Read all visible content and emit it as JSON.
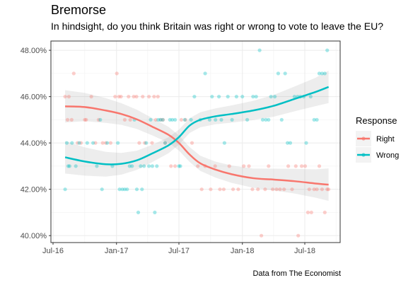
{
  "chart_data": {
    "type": "scatter",
    "title": "Bremorse",
    "subtitle": "In hindsight, do you think Britain was right or wrong to vote to leave the EU?",
    "caption": "Data from The Economist",
    "xlabel": "",
    "ylabel": "",
    "x_ticks": [
      "Jul-16",
      "Jan-17",
      "Jul-17",
      "Jan-18",
      "Jul-18"
    ],
    "y_ticks": [
      "40.00%",
      "42.00%",
      "44.00%",
      "46.00%",
      "48.00%"
    ],
    "ylim": [
      39.7,
      48.4
    ],
    "grid": true,
    "legend": {
      "title": "Response",
      "placement": "right"
    },
    "colors": {
      "Right": "#F8766D",
      "Wrong": "#00BFC4"
    },
    "series": [
      {
        "name": "Right",
        "points": [
          [
            "2016-08-05",
            46
          ],
          [
            "2016-08-12",
            45
          ],
          [
            "2016-08-16",
            46
          ],
          [
            "2016-08-24",
            45
          ],
          [
            "2016-08-30",
            47
          ],
          [
            "2016-09-10",
            44
          ],
          [
            "2016-09-20",
            44
          ],
          [
            "2016-10-01",
            45
          ],
          [
            "2016-10-05",
            45
          ],
          [
            "2016-10-20",
            46
          ],
          [
            "2016-11-01",
            44
          ],
          [
            "2016-11-10",
            45
          ],
          [
            "2016-11-22",
            44
          ],
          [
            "2016-12-01",
            44
          ],
          [
            "2016-12-15",
            44
          ],
          [
            "2016-12-28",
            46
          ],
          [
            "2017-01-02",
            47
          ],
          [
            "2017-01-08",
            46
          ],
          [
            "2017-01-14",
            46
          ],
          [
            "2017-01-25",
            45
          ],
          [
            "2017-02-05",
            46
          ],
          [
            "2017-02-10",
            45
          ],
          [
            "2017-02-20",
            46
          ],
          [
            "2017-02-28",
            46
          ],
          [
            "2017-03-08",
            44
          ],
          [
            "2017-03-18",
            46
          ],
          [
            "2017-03-24",
            44
          ],
          [
            "2017-04-05",
            46
          ],
          [
            "2017-04-14",
            44
          ],
          [
            "2017-04-20",
            46
          ],
          [
            "2017-04-25",
            45
          ],
          [
            "2017-05-01",
            46
          ],
          [
            "2017-05-10",
            45
          ],
          [
            "2017-05-16",
            45
          ],
          [
            "2017-05-22",
            44
          ],
          [
            "2017-06-08",
            43
          ],
          [
            "2017-06-20",
            43
          ],
          [
            "2017-07-08",
            45
          ],
          [
            "2017-07-20",
            45
          ],
          [
            "2017-08-08",
            44
          ],
          [
            "2017-08-25",
            43
          ],
          [
            "2017-09-05",
            42
          ],
          [
            "2017-09-15",
            43
          ],
          [
            "2017-10-01",
            42
          ],
          [
            "2017-10-14",
            43
          ],
          [
            "2017-10-28",
            42
          ],
          [
            "2017-11-08",
            42
          ],
          [
            "2017-11-24",
            43
          ],
          [
            "2017-12-05",
            42
          ],
          [
            "2017-12-20",
            42
          ],
          [
            "2018-01-05",
            43
          ],
          [
            "2018-01-20",
            43
          ],
          [
            "2018-01-30",
            42
          ],
          [
            "2018-02-15",
            42
          ],
          [
            "2018-02-25",
            40
          ],
          [
            "2018-03-08",
            42
          ],
          [
            "2018-03-18",
            43
          ],
          [
            "2018-03-30",
            42
          ],
          [
            "2018-04-10",
            42
          ],
          [
            "2018-04-20",
            42
          ],
          [
            "2018-05-02",
            42
          ],
          [
            "2018-05-14",
            43
          ],
          [
            "2018-05-25",
            42
          ],
          [
            "2018-06-05",
            43
          ],
          [
            "2018-06-12",
            40
          ],
          [
            "2018-06-22",
            43
          ],
          [
            "2018-07-02",
            43
          ],
          [
            "2018-07-10",
            41
          ],
          [
            "2018-07-14",
            42
          ],
          [
            "2018-07-20",
            41
          ],
          [
            "2018-07-28",
            42
          ],
          [
            "2018-08-05",
            42
          ],
          [
            "2018-08-12",
            43
          ],
          [
            "2018-08-20",
            42
          ],
          [
            "2018-08-28",
            41
          ],
          [
            "2018-09-04",
            42
          ],
          [
            "2018-09-08",
            42
          ]
        ],
        "trend": [
          [
            "2016-08-05",
            45.58
          ],
          [
            "2016-10-01",
            45.55
          ],
          [
            "2016-12-01",
            45.4
          ],
          [
            "2017-01-15",
            45.25
          ],
          [
            "2017-03-01",
            45.02
          ],
          [
            "2017-04-15",
            44.7
          ],
          [
            "2017-06-01",
            44.35
          ],
          [
            "2017-07-01",
            44.0
          ],
          [
            "2017-08-01",
            43.5
          ],
          [
            "2017-09-01",
            43.12
          ],
          [
            "2017-10-15",
            42.85
          ],
          [
            "2017-12-01",
            42.65
          ],
          [
            "2018-02-01",
            42.48
          ],
          [
            "2018-04-01",
            42.42
          ],
          [
            "2018-06-01",
            42.35
          ],
          [
            "2018-08-01",
            42.25
          ],
          [
            "2018-09-08",
            42.2
          ]
        ]
      },
      {
        "name": "Wrong",
        "points": [
          [
            "2016-08-05",
            42
          ],
          [
            "2016-08-10",
            44
          ],
          [
            "2016-08-14",
            43
          ],
          [
            "2016-08-18",
            43
          ],
          [
            "2016-08-25",
            44
          ],
          [
            "2016-09-05",
            43
          ],
          [
            "2016-09-15",
            44
          ],
          [
            "2016-10-08",
            44
          ],
          [
            "2016-10-25",
            44
          ],
          [
            "2016-11-05",
            43
          ],
          [
            "2016-11-15",
            45
          ],
          [
            "2016-11-20",
            42
          ],
          [
            "2016-12-05",
            44
          ],
          [
            "2016-12-20",
            43
          ],
          [
            "2017-01-05",
            44
          ],
          [
            "2017-01-10",
            42
          ],
          [
            "2017-01-18",
            42
          ],
          [
            "2017-01-25",
            42
          ],
          [
            "2017-02-01",
            42
          ],
          [
            "2017-02-08",
            43
          ],
          [
            "2017-02-15",
            43
          ],
          [
            "2017-02-22",
            45
          ],
          [
            "2017-03-01",
            42
          ],
          [
            "2017-03-05",
            41
          ],
          [
            "2017-03-12",
            43
          ],
          [
            "2017-03-16",
            42
          ],
          [
            "2017-03-22",
            43
          ],
          [
            "2017-03-28",
            44
          ],
          [
            "2017-04-05",
            43
          ],
          [
            "2017-04-10",
            45
          ],
          [
            "2017-04-15",
            43
          ],
          [
            "2017-04-22",
            41
          ],
          [
            "2017-04-28",
            43
          ],
          [
            "2017-05-02",
            45
          ],
          [
            "2017-05-08",
            45
          ],
          [
            "2017-05-15",
            45
          ],
          [
            "2017-05-22",
            44
          ],
          [
            "2017-06-05",
            45
          ],
          [
            "2017-06-12",
            45
          ],
          [
            "2017-06-20",
            45
          ],
          [
            "2017-07-01",
            43
          ],
          [
            "2017-07-05",
            43
          ],
          [
            "2017-07-18",
            45
          ],
          [
            "2017-08-05",
            45
          ],
          [
            "2017-08-15",
            46
          ],
          [
            "2017-09-01",
            45
          ],
          [
            "2017-09-15",
            47
          ],
          [
            "2017-09-28",
            45
          ],
          [
            "2017-10-05",
            46
          ],
          [
            "2017-10-15",
            45
          ],
          [
            "2017-10-25",
            46
          ],
          [
            "2017-11-01",
            45
          ],
          [
            "2017-11-10",
            44
          ],
          [
            "2017-11-20",
            46
          ],
          [
            "2017-12-02",
            45
          ],
          [
            "2017-12-15",
            46
          ],
          [
            "2018-01-01",
            46
          ],
          [
            "2018-01-15",
            45
          ],
          [
            "2018-02-01",
            46
          ],
          [
            "2018-02-10",
            46
          ],
          [
            "2018-02-20",
            48
          ],
          [
            "2018-03-01",
            45
          ],
          [
            "2018-03-10",
            45
          ],
          [
            "2018-03-18",
            45
          ],
          [
            "2018-03-25",
            46
          ],
          [
            "2018-04-05",
            46
          ],
          [
            "2018-04-15",
            47
          ],
          [
            "2018-04-25",
            45
          ],
          [
            "2018-05-05",
            47
          ],
          [
            "2018-05-12",
            44
          ],
          [
            "2018-05-20",
            44
          ],
          [
            "2018-06-01",
            46
          ],
          [
            "2018-06-10",
            46
          ],
          [
            "2018-06-18",
            46
          ],
          [
            "2018-06-28",
            46
          ],
          [
            "2018-07-05",
            44
          ],
          [
            "2018-07-18",
            46
          ],
          [
            "2018-07-28",
            45
          ],
          [
            "2018-08-05",
            45
          ],
          [
            "2018-08-12",
            47
          ],
          [
            "2018-08-20",
            47
          ],
          [
            "2018-08-28",
            47
          ],
          [
            "2018-09-04",
            48
          ]
        ],
        "trend": [
          [
            "2016-08-05",
            43.38
          ],
          [
            "2016-10-01",
            43.2
          ],
          [
            "2016-12-01",
            43.08
          ],
          [
            "2017-01-15",
            43.1
          ],
          [
            "2017-03-01",
            43.25
          ],
          [
            "2017-04-15",
            43.55
          ],
          [
            "2017-06-01",
            43.9
          ],
          [
            "2017-07-01",
            44.25
          ],
          [
            "2017-08-01",
            44.75
          ],
          [
            "2017-09-01",
            45.0
          ],
          [
            "2017-10-15",
            45.15
          ],
          [
            "2017-12-01",
            45.25
          ],
          [
            "2018-02-01",
            45.4
          ],
          [
            "2018-04-01",
            45.6
          ],
          [
            "2018-06-01",
            45.9
          ],
          [
            "2018-08-01",
            46.2
          ],
          [
            "2018-09-08",
            46.42
          ]
        ]
      }
    ]
  }
}
